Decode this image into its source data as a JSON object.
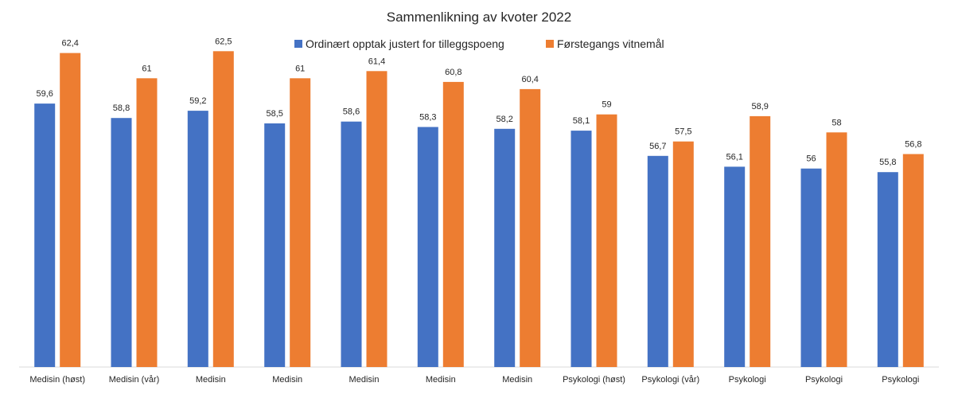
{
  "chart_data": {
    "type": "bar",
    "title": "Sammenlikning av kvoter 2022",
    "xlabel": "",
    "ylabel": "",
    "ylim": [
      45,
      63
    ],
    "grid": false,
    "legend_position": "top-center",
    "categories": [
      "Medisin (høst)",
      "Medisin (vår)",
      "Medisin",
      "Medisin",
      "Medisin",
      "Medisin",
      "Medisin",
      "Psykologi (høst)",
      "Psykologi (vår)",
      "Psykologi",
      "Psykologi",
      "Psykologi"
    ],
    "series": [
      {
        "name": "Ordinært opptak justert for tilleggspoeng",
        "color": "#4472C4",
        "values": [
          59.6,
          58.8,
          59.2,
          58.5,
          58.6,
          58.3,
          58.2,
          58.1,
          56.7,
          56.1,
          56.0,
          55.8
        ],
        "labels": [
          "59,6",
          "58,8",
          "59,2",
          "58,5",
          "58,6",
          "58,3",
          "58,2",
          "58,1",
          "56,7",
          "56,1",
          "56",
          "55,8"
        ]
      },
      {
        "name": "Førstegangs vitnemål",
        "color": "#ED7D31",
        "values": [
          62.4,
          61.0,
          62.5,
          61.0,
          61.4,
          60.8,
          60.4,
          59.0,
          57.5,
          58.9,
          58.0,
          56.8
        ],
        "labels": [
          "62,4",
          "61",
          "62,5",
          "61",
          "61,4",
          "60,8",
          "60,4",
          "59",
          "57,5",
          "58,9",
          "58",
          "56,8"
        ]
      }
    ]
  }
}
